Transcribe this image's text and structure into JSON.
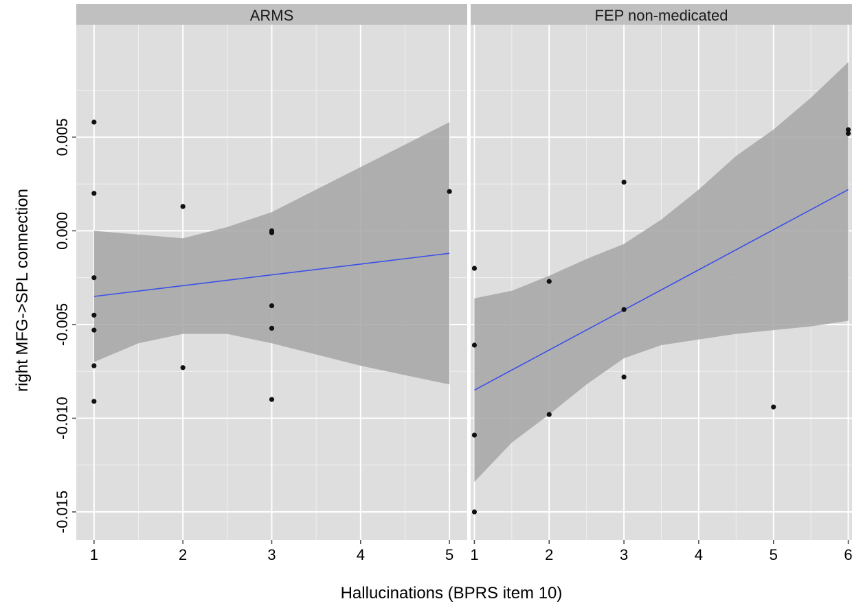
{
  "chart_data": {
    "type": "scatter",
    "facets": [
      {
        "label": "ARMS",
        "x_ticks": [
          1,
          2,
          3,
          4,
          5
        ],
        "xlim": [
          0.8,
          5.2
        ],
        "points": [
          [
            1,
            0.0058
          ],
          [
            1,
            0.002
          ],
          [
            1,
            -0.0025
          ],
          [
            1,
            -0.0045
          ],
          [
            1,
            -0.0053
          ],
          [
            1,
            -0.0072
          ],
          [
            1,
            -0.0091
          ],
          [
            2,
            0.0013
          ],
          [
            2,
            -0.0073
          ],
          [
            3,
            0.0
          ],
          [
            3,
            -0.0001
          ],
          [
            3,
            -0.004
          ],
          [
            3,
            -0.0052
          ],
          [
            3,
            -0.009
          ],
          [
            5,
            0.0021
          ]
        ],
        "fit": {
          "x": [
            1,
            5
          ],
          "y": [
            -0.0035,
            -0.0012
          ]
        },
        "band": {
          "x": [
            1,
            1.5,
            2,
            2.5,
            3,
            3.5,
            4,
            4.5,
            5
          ],
          "lower": [
            -0.007,
            -0.006,
            -0.0055,
            -0.0055,
            -0.006,
            -0.0066,
            -0.0072,
            -0.0077,
            -0.0082
          ],
          "upper": [
            0.0,
            -0.0002,
            -0.0004,
            0.0002,
            0.001,
            0.0022,
            0.0034,
            0.0046,
            0.0058
          ]
        }
      },
      {
        "label": "FEP non-medicated",
        "x_ticks": [
          1,
          2,
          3,
          4,
          5,
          6
        ],
        "xlim": [
          0.95,
          6.05
        ],
        "points": [
          [
            1,
            -0.002
          ],
          [
            1,
            -0.0061
          ],
          [
            1,
            -0.0109
          ],
          [
            1,
            -0.015
          ],
          [
            2,
            -0.0027
          ],
          [
            2,
            -0.0098
          ],
          [
            3,
            0.0026
          ],
          [
            3,
            -0.0042
          ],
          [
            3,
            -0.0078
          ],
          [
            5,
            -0.0094
          ],
          [
            6,
            0.0054
          ],
          [
            6,
            0.0052
          ]
        ],
        "fit": {
          "x": [
            1,
            6
          ],
          "y": [
            -0.0085,
            0.0022
          ]
        },
        "band": {
          "x": [
            1,
            1.5,
            2,
            2.5,
            3,
            3.5,
            4,
            4.5,
            5,
            5.5,
            6
          ],
          "lower": [
            -0.0134,
            -0.0113,
            -0.0098,
            -0.0082,
            -0.0068,
            -0.0061,
            -0.0058,
            -0.0055,
            -0.0053,
            -0.0051,
            -0.0048
          ],
          "upper": [
            -0.0036,
            -0.0032,
            -0.0024,
            -0.0015,
            -0.0007,
            0.0006,
            0.0022,
            0.004,
            0.0054,
            0.0071,
            0.009
          ]
        }
      }
    ],
    "ylim": [
      -0.0165,
      0.011
    ],
    "y_ticks": [
      0.005,
      0.0,
      -0.005,
      -0.01,
      -0.015
    ],
    "y_tick_labels": [
      "0.005",
      "0.000",
      "-0.005",
      "-0.010",
      "-0.015"
    ],
    "xlabel": "Hallucinations (BPRS item 10)",
    "ylabel": "right MFG->SPL connection",
    "grid": true,
    "colors": {
      "panel_bg": "#dedede",
      "strip_bg": "#c0c0c0",
      "grid": "#ffffff",
      "band": "#a6a6a6",
      "fit_line": "#3a4fe8",
      "points": "#111111"
    }
  }
}
